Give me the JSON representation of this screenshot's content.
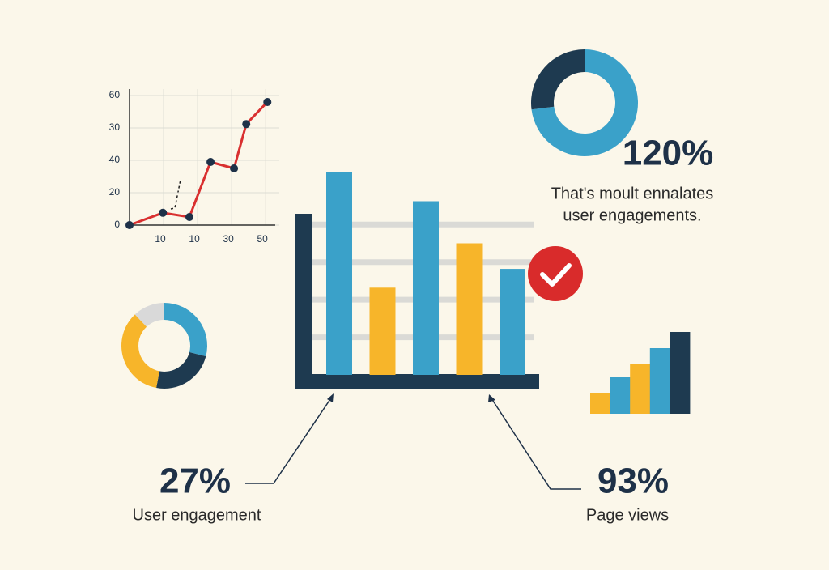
{
  "chart_data": [
    {
      "type": "line",
      "color": "#d93030",
      "point_color": "#1e3148",
      "x": [
        0,
        0.98,
        1.76,
        2.38,
        3.07,
        3.43,
        4.05
      ],
      "values": [
        0,
        0.38,
        0.25,
        1.95,
        1.75,
        3.12,
        3.8
      ],
      "xlim": [
        0,
        4.4
      ],
      "ylim": [
        0,
        4.2
      ],
      "xticks": [
        {
          "value": 1,
          "label": "10"
        },
        {
          "value": 2,
          "label": "10"
        },
        {
          "value": 3,
          "label": "30"
        },
        {
          "value": 4,
          "label": "50"
        }
      ],
      "yticks": [
        {
          "value": 0,
          "label": "0"
        },
        {
          "value": 1,
          "label": "20"
        },
        {
          "value": 2,
          "label": "40"
        },
        {
          "value": 3,
          "label": "30"
        },
        {
          "value": 4,
          "label": "60"
        }
      ],
      "grid": true
    },
    {
      "type": "bar",
      "values": [
        5.4,
        2.32,
        4.62,
        3.5,
        2.82
      ],
      "colors": [
        "#3aa1c9",
        "#f7b52a",
        "#3aa1c9",
        "#f7b52a",
        "#3aa1c9"
      ],
      "ylim": [
        0,
        5.6
      ],
      "yticks": [
        1,
        2,
        3,
        4
      ],
      "grid": true
    },
    {
      "type": "bar",
      "values": [
        25,
        45,
        62,
        81,
        101
      ],
      "colors": [
        "#f7b52a",
        "#3aa1c9",
        "#f7b52a",
        "#3aa1c9",
        "#1e3a50"
      ],
      "ylim": [
        0,
        110
      ]
    },
    {
      "type": "pie",
      "values": [
        29,
        24,
        35,
        12
      ],
      "colors": [
        "#3aa1c9",
        "#1e3a50",
        "#f7b52a",
        "#d9d9d9"
      ]
    },
    {
      "type": "pie",
      "values": [
        73,
        27
      ],
      "colors": [
        "#3aa1c9",
        "#1e3a50"
      ]
    }
  ],
  "callouts": [
    {
      "figure": "120%",
      "text": [
        "That's moult ennalates",
        "user engagements."
      ]
    },
    {
      "figure": "27%",
      "text": [
        "User engagement"
      ]
    },
    {
      "figure": "93%",
      "text": [
        "Page views"
      ]
    }
  ]
}
